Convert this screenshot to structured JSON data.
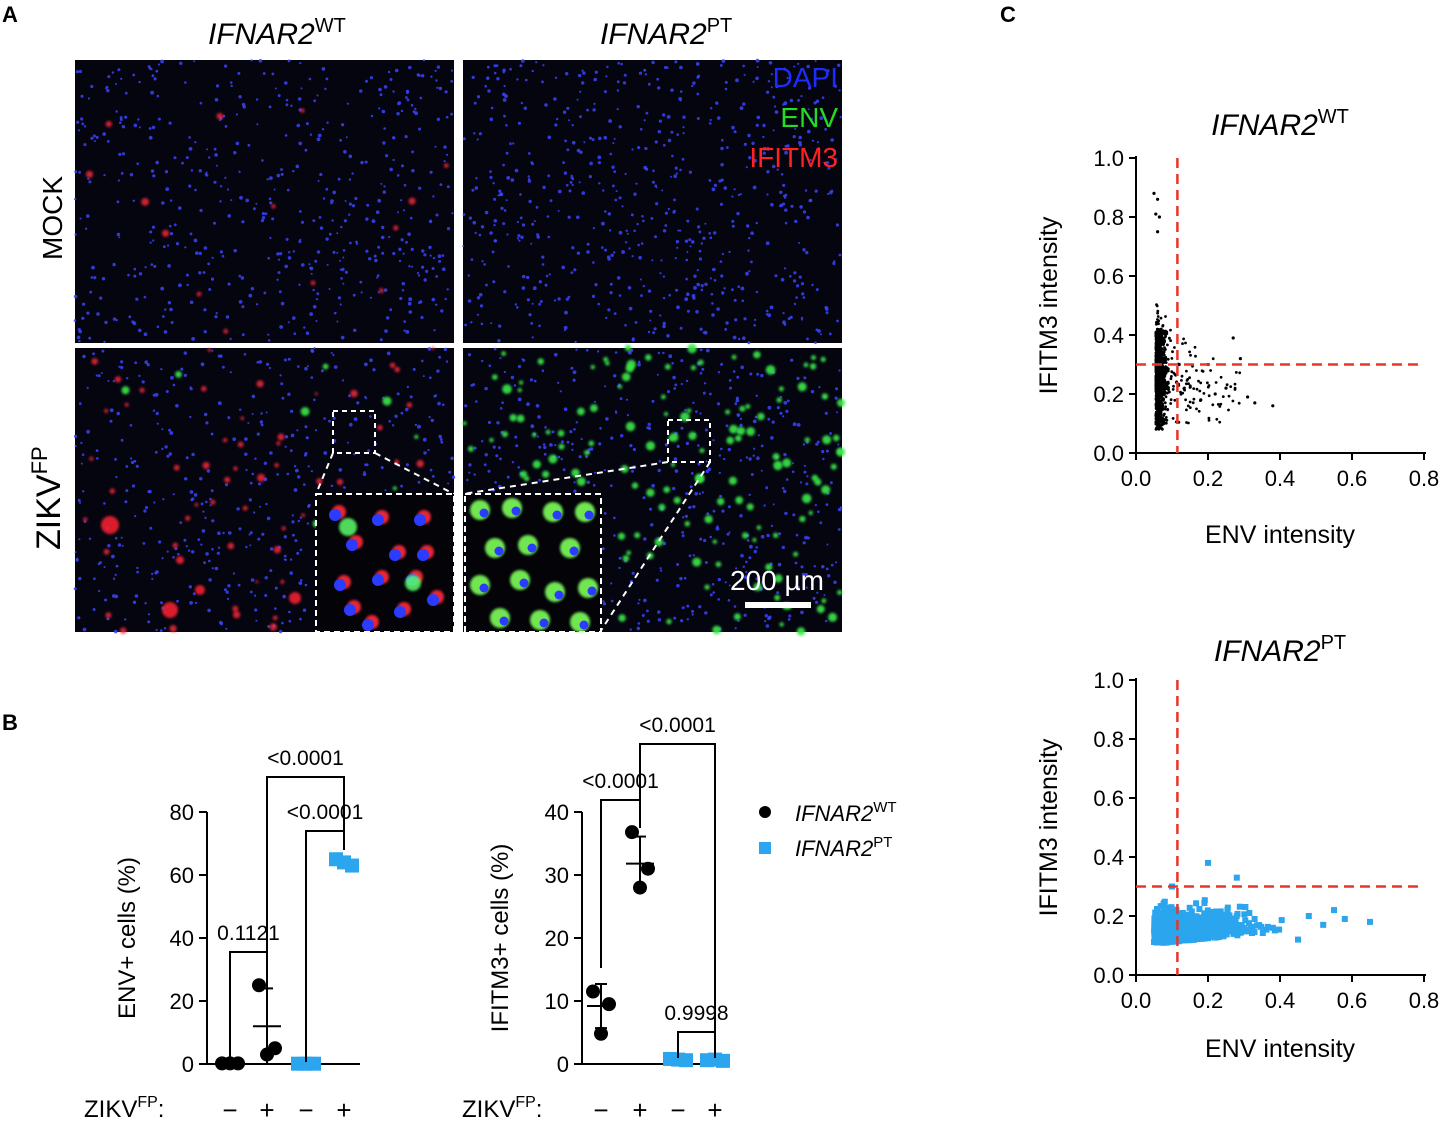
{
  "panels": {
    "A": {
      "letter": "A",
      "col_headers": [
        {
          "base": "IFNAR2",
          "sup": "WT"
        },
        {
          "base": "IFNAR2",
          "sup": "PT"
        }
      ],
      "row_labels": [
        {
          "base": "MOCK",
          "sup": ""
        },
        {
          "base": "ZIKV",
          "sup": "FP"
        }
      ],
      "legend": [
        {
          "text": "DAPI",
          "color": "#1c2cff"
        },
        {
          "text": "ENV",
          "color": "#22dd22"
        },
        {
          "text": "IFITM3",
          "color": "#ff2222"
        }
      ],
      "scale_bar": "200 µm"
    },
    "B": {
      "letter": "B",
      "xaxis_prefix": {
        "base": "ZIKV",
        "sup": "FP",
        "suffix": ":"
      },
      "treatment_labels": [
        "−",
        "+",
        "−",
        "+"
      ],
      "legend": [
        {
          "base": "IFNAR2",
          "sup": "WT",
          "color": "#000000",
          "marker": "circle"
        },
        {
          "base": "IFNAR2",
          "sup": "PT",
          "color": "#2aa5ee",
          "marker": "square"
        }
      ]
    },
    "C": {
      "letter": "C"
    }
  },
  "chart_data": [
    {
      "id": "B-left",
      "type": "scatter",
      "ylabel": "ENV+ cells (%)",
      "ylim": [
        0,
        80
      ],
      "yticks": [
        "0",
        "20",
        "40",
        "60",
        "80"
      ],
      "categories": [
        "WT −",
        "WT +",
        "PT −",
        "PT +"
      ],
      "groups": [
        {
          "genotype": "IFNAR2 WT",
          "zikv": "−",
          "values": [
            0.2,
            0.2,
            0.2
          ],
          "mean": 0.2,
          "sd": 0.1,
          "color": "#000000",
          "marker": "circle"
        },
        {
          "genotype": "IFNAR2 WT",
          "zikv": "+",
          "values": [
            25,
            5,
            3
          ],
          "mean": 12,
          "sd": 12,
          "color": "#000000",
          "marker": "circle"
        },
        {
          "genotype": "IFNAR2 PT",
          "zikv": "−",
          "values": [
            0.1,
            0.1,
            0.1
          ],
          "mean": 0.1,
          "sd": 0.1,
          "color": "#2aa5ee",
          "marker": "square"
        },
        {
          "genotype": "IFNAR2 PT",
          "zikv": "+",
          "values": [
            65,
            63,
            64
          ],
          "mean": 64,
          "sd": 1.5,
          "color": "#2aa5ee",
          "marker": "square"
        }
      ],
      "comparisons": [
        {
          "between": [
            "WT −",
            "WT +"
          ],
          "p": "0.1121"
        },
        {
          "between": [
            "PT −",
            "PT +"
          ],
          "p": "<0.0001"
        },
        {
          "between": [
            "WT +",
            "PT +"
          ],
          "p": "<0.0001"
        }
      ]
    },
    {
      "id": "B-right",
      "type": "scatter",
      "ylabel": "IFITM3+ cells (%)",
      "ylim": [
        0,
        40
      ],
      "yticks": [
        "0",
        "10",
        "20",
        "30",
        "40"
      ],
      "categories": [
        "WT −",
        "WT +",
        "PT −",
        "PT +"
      ],
      "groups": [
        {
          "genotype": "IFNAR2 WT",
          "zikv": "−",
          "values": [
            11.5,
            9.5,
            4.8
          ],
          "mean": 9.2,
          "sd": 3.5,
          "color": "#000000",
          "marker": "circle"
        },
        {
          "genotype": "IFNAR2 WT",
          "zikv": "+",
          "values": [
            36.8,
            31.0,
            28.0
          ],
          "mean": 31.8,
          "sd": 4.3,
          "color": "#000000",
          "marker": "circle"
        },
        {
          "genotype": "IFNAR2 PT",
          "zikv": "−",
          "values": [
            0.8,
            0.6,
            0.7
          ],
          "mean": 0.7,
          "sd": 0.2,
          "color": "#2aa5ee",
          "marker": "square"
        },
        {
          "genotype": "IFNAR2 PT",
          "zikv": "+",
          "values": [
            0.6,
            0.5,
            0.7
          ],
          "mean": 0.6,
          "sd": 0.2,
          "color": "#2aa5ee",
          "marker": "square"
        }
      ],
      "comparisons": [
        {
          "between": [
            "WT −",
            "WT +"
          ],
          "p": "<0.0001"
        },
        {
          "between": [
            "PT −",
            "PT +"
          ],
          "p": "0.9998"
        },
        {
          "between": [
            "WT +",
            "PT +"
          ],
          "p": "<0.0001"
        }
      ]
    },
    {
      "id": "C-top",
      "type": "scatter",
      "title": {
        "base": "IFNAR2",
        "sup": "WT"
      },
      "xlabel": "ENV intensity",
      "ylabel": "IFITM3 intensity",
      "xlim": [
        0,
        0.8
      ],
      "ylim": [
        0,
        1.0
      ],
      "xticks": [
        "0.0",
        "0.2",
        "0.4",
        "0.6",
        "0.8"
      ],
      "yticks": [
        "0.0",
        "0.2",
        "0.4",
        "0.6",
        "0.8",
        "1.0"
      ],
      "thresholds": {
        "x": 0.115,
        "y": 0.3
      },
      "point_color": "#000000",
      "marker": "dot",
      "distribution": {
        "n": 1300,
        "x_range": [
          0.04,
          0.38
        ],
        "y_range": [
          0.06,
          0.88
        ]
      },
      "points": [
        [
          0.05,
          0.88
        ],
        [
          0.06,
          0.86
        ],
        [
          0.055,
          0.81
        ],
        [
          0.065,
          0.8
        ],
        [
          0.06,
          0.75
        ],
        [
          0.27,
          0.39
        ],
        [
          0.29,
          0.32
        ],
        [
          0.38,
          0.16
        ],
        [
          0.33,
          0.17
        ],
        [
          0.31,
          0.19
        ],
        [
          0.25,
          0.22
        ],
        [
          0.22,
          0.2
        ],
        [
          0.2,
          0.3
        ],
        [
          0.18,
          0.18
        ],
        [
          0.12,
          0.3
        ]
      ]
    },
    {
      "id": "C-bottom",
      "type": "scatter",
      "title": {
        "base": "IFNAR2",
        "sup": "PT"
      },
      "xlabel": "ENV intensity",
      "ylabel": "IFITM3 intensity",
      "xlim": [
        0,
        0.8
      ],
      "ylim": [
        0,
        1.0
      ],
      "xticks": [
        "0.0",
        "0.2",
        "0.4",
        "0.6",
        "0.8"
      ],
      "yticks": [
        "0.0",
        "0.2",
        "0.4",
        "0.6",
        "0.8",
        "1.0"
      ],
      "thresholds": {
        "x": 0.115,
        "y": 0.3
      },
      "point_color": "#2aa5ee",
      "marker": "square",
      "distribution": {
        "n": 1500,
        "x_range": [
          0.04,
          0.65
        ],
        "y_range": [
          0.04,
          0.38
        ]
      },
      "points": [
        [
          0.2,
          0.38
        ],
        [
          0.28,
          0.33
        ],
        [
          0.1,
          0.3
        ],
        [
          0.65,
          0.18
        ],
        [
          0.58,
          0.19
        ],
        [
          0.52,
          0.17
        ],
        [
          0.55,
          0.22
        ],
        [
          0.48,
          0.2
        ],
        [
          0.45,
          0.12
        ]
      ]
    }
  ]
}
